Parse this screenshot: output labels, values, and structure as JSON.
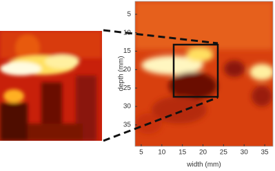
{
  "chart_data": {
    "type": "heatmap",
    "x_label": "width (mm)",
    "y_label": "depth (mm)",
    "xlim": [
      3.5,
      37
    ],
    "xticks": [
      5,
      10,
      15,
      20,
      25,
      30,
      35
    ],
    "ylim": [
      1.5,
      40.8
    ],
    "yticks": [
      5,
      10,
      15,
      20,
      25,
      30,
      35
    ],
    "y_inverted": true
  }
}
